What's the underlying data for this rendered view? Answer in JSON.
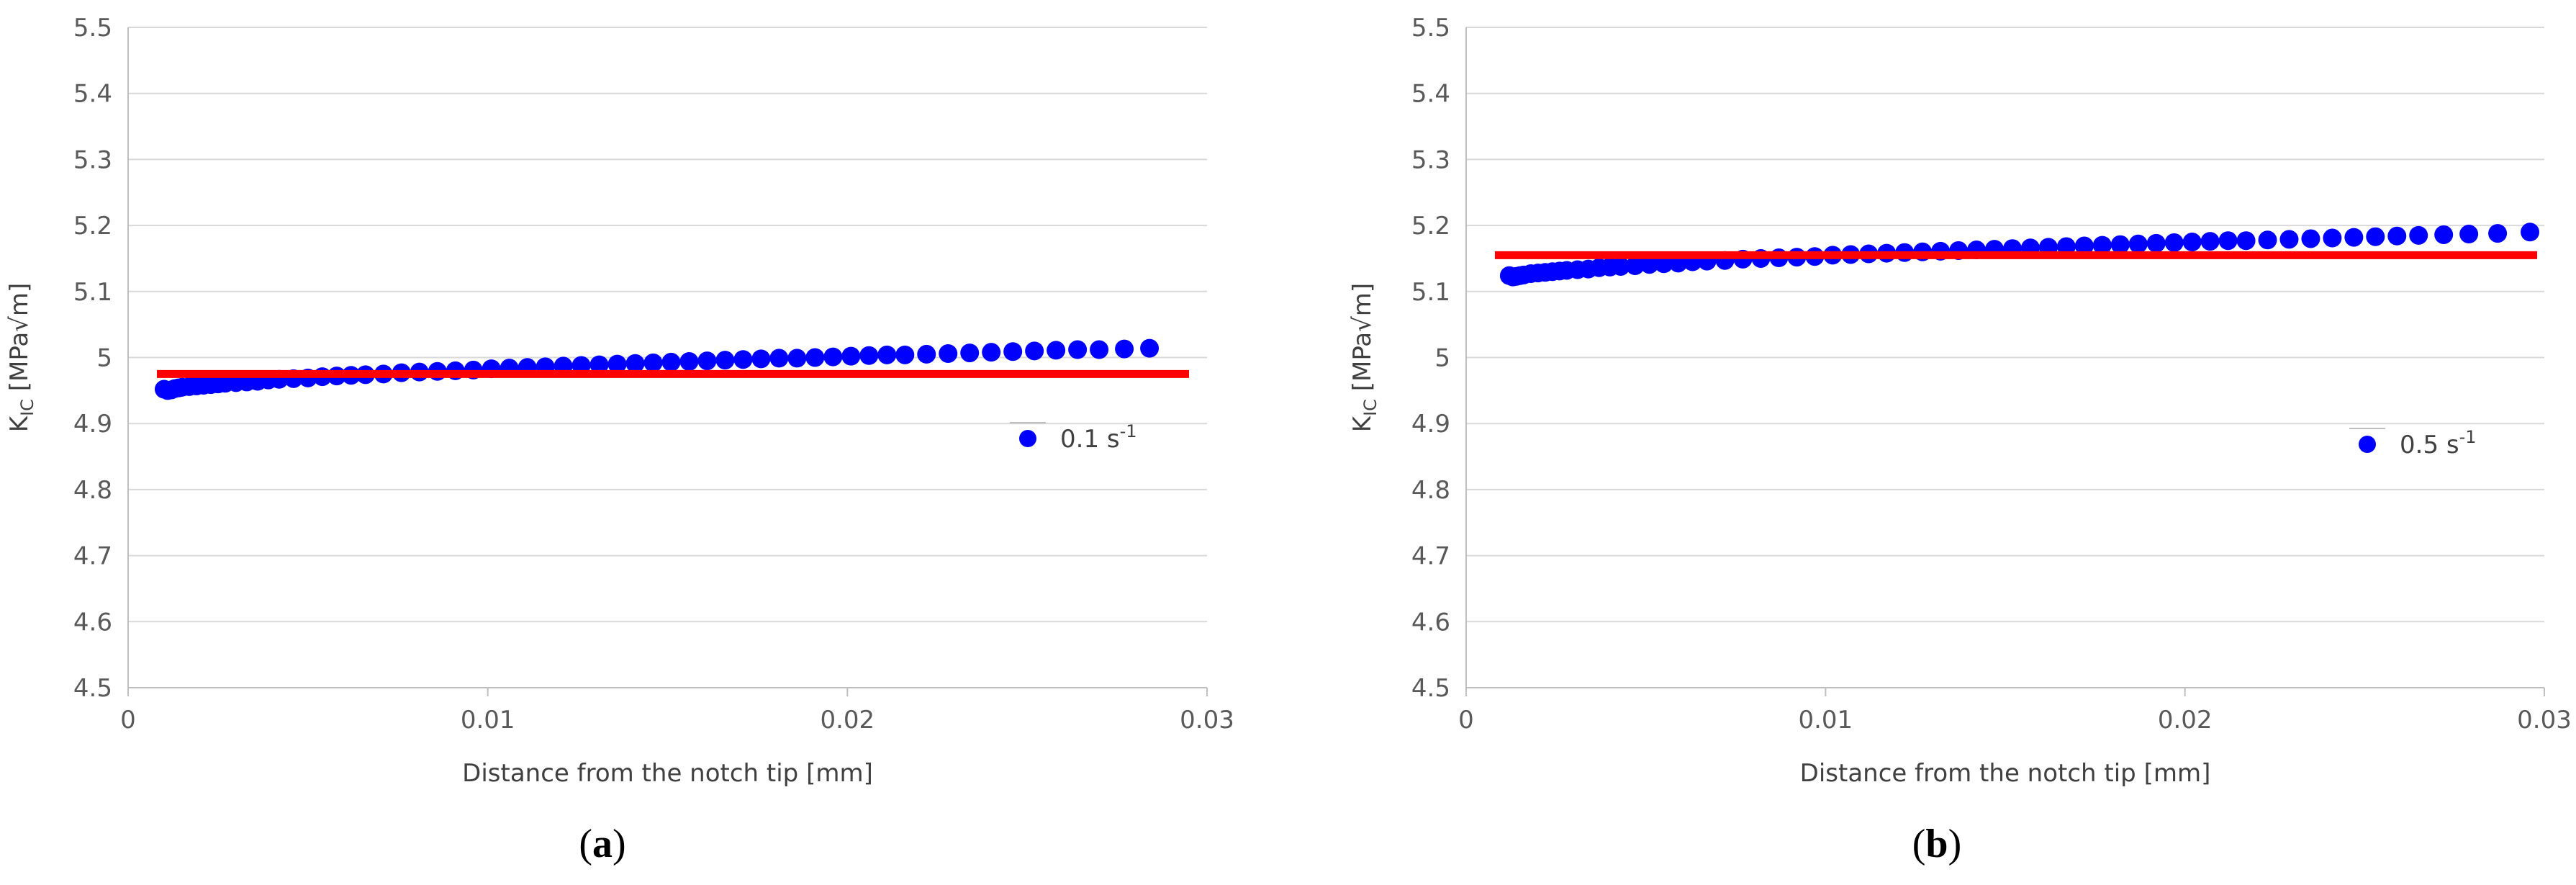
{
  "chart_data": [
    {
      "type": "scatter",
      "panel_label": "(a)",
      "xlabel": "Distance from the notch tip [mm]",
      "ylabel": "KIC [MPa√m]",
      "xlim": [
        0,
        0.03
      ],
      "ylim": [
        4.5,
        5.5
      ],
      "xticks": [
        "0",
        "0.01",
        "0.02",
        "0.03"
      ],
      "yticks": [
        "4.5",
        "4.6",
        "4.7",
        "4.8",
        "4.9",
        "5",
        "5.1",
        "5.2",
        "5.3",
        "5.4",
        "5.5"
      ],
      "grid": "horizontal",
      "legend_position": "right",
      "colors": {
        "points": "#0000ff",
        "line": "#ff0000"
      },
      "series": [
        {
          "name": "0.1 s-1",
          "marker": "circle",
          "points": [
            [
              0.001,
              4.952
            ],
            [
              0.0011,
              4.95
            ],
            [
              0.0012,
              4.951
            ],
            [
              0.0013,
              4.953
            ],
            [
              0.0014,
              4.954
            ],
            [
              0.0015,
              4.955
            ],
            [
              0.0017,
              4.956
            ],
            [
              0.0019,
              4.957
            ],
            [
              0.0021,
              4.958
            ],
            [
              0.0023,
              4.959
            ],
            [
              0.0025,
              4.96
            ],
            [
              0.0027,
              4.961
            ],
            [
              0.003,
              4.962
            ],
            [
              0.0033,
              4.963
            ],
            [
              0.0036,
              4.964
            ],
            [
              0.0039,
              4.966
            ],
            [
              0.0042,
              4.967
            ],
            [
              0.0046,
              4.968
            ],
            [
              0.005,
              4.969
            ],
            [
              0.0054,
              4.971
            ],
            [
              0.0058,
              4.972
            ],
            [
              0.0062,
              4.973
            ],
            [
              0.0066,
              4.974
            ],
            [
              0.0071,
              4.975
            ],
            [
              0.0076,
              4.977
            ],
            [
              0.0081,
              4.978
            ],
            [
              0.0086,
              4.979
            ],
            [
              0.0091,
              4.98
            ],
            [
              0.0096,
              4.981
            ],
            [
              0.0101,
              4.983
            ],
            [
              0.0106,
              4.984
            ],
            [
              0.0111,
              4.985
            ],
            [
              0.0116,
              4.986
            ],
            [
              0.0121,
              4.987
            ],
            [
              0.0126,
              4.988
            ],
            [
              0.0131,
              4.989
            ],
            [
              0.0136,
              4.99
            ],
            [
              0.0141,
              4.991
            ],
            [
              0.0146,
              4.992
            ],
            [
              0.0151,
              4.993
            ],
            [
              0.0156,
              4.994
            ],
            [
              0.0161,
              4.995
            ],
            [
              0.0166,
              4.996
            ],
            [
              0.0171,
              4.997
            ],
            [
              0.0176,
              4.998
            ],
            [
              0.0181,
              4.999
            ],
            [
              0.0186,
              4.999
            ],
            [
              0.0191,
              5.0
            ],
            [
              0.0196,
              5.001
            ],
            [
              0.0201,
              5.002
            ],
            [
              0.0206,
              5.003
            ],
            [
              0.0211,
              5.004
            ],
            [
              0.0216,
              5.004
            ],
            [
              0.0222,
              5.005
            ],
            [
              0.0228,
              5.006
            ],
            [
              0.0234,
              5.007
            ],
            [
              0.024,
              5.008
            ],
            [
              0.0246,
              5.009
            ],
            [
              0.0252,
              5.01
            ],
            [
              0.0258,
              5.011
            ],
            [
              0.0264,
              5.012
            ],
            [
              0.027,
              5.012
            ],
            [
              0.0277,
              5.013
            ],
            [
              0.0284,
              5.014
            ]
          ]
        }
      ],
      "reference_line": {
        "y": 4.975,
        "x_start": 0.0008,
        "x_end": 0.0295
      }
    },
    {
      "type": "scatter",
      "panel_label": "(b)",
      "xlabel": "Distance from the notch tip [mm]",
      "ylabel": "KIC [MPa√m]",
      "xlim": [
        0,
        0.03
      ],
      "ylim": [
        4.5,
        5.5
      ],
      "xticks": [
        "0",
        "0.01",
        "0.02",
        "0.03"
      ],
      "yticks": [
        "4.5",
        "4.6",
        "4.7",
        "4.8",
        "4.9",
        "5",
        "5.1",
        "5.2",
        "5.3",
        "5.4",
        "5.5"
      ],
      "grid": "horizontal",
      "legend_position": "right",
      "colors": {
        "points": "#0000ff",
        "line": "#ff0000"
      },
      "series": [
        {
          "name": "0.5 s-1",
          "marker": "circle",
          "points": [
            [
              0.0012,
              5.124
            ],
            [
              0.0013,
              5.122
            ],
            [
              0.0014,
              5.123
            ],
            [
              0.0015,
              5.124
            ],
            [
              0.0016,
              5.125
            ],
            [
              0.0018,
              5.127
            ],
            [
              0.002,
              5.128
            ],
            [
              0.0022,
              5.129
            ],
            [
              0.0024,
              5.13
            ],
            [
              0.0026,
              5.131
            ],
            [
              0.0028,
              5.132
            ],
            [
              0.0031,
              5.133
            ],
            [
              0.0034,
              5.134
            ],
            [
              0.0037,
              5.136
            ],
            [
              0.004,
              5.137
            ],
            [
              0.0043,
              5.138
            ],
            [
              0.0047,
              5.139
            ],
            [
              0.0051,
              5.141
            ],
            [
              0.0055,
              5.142
            ],
            [
              0.0059,
              5.143
            ],
            [
              0.0063,
              5.145
            ],
            [
              0.0067,
              5.146
            ],
            [
              0.0072,
              5.147
            ],
            [
              0.0077,
              5.149
            ],
            [
              0.0082,
              5.15
            ],
            [
              0.0087,
              5.151
            ],
            [
              0.0092,
              5.152
            ],
            [
              0.0097,
              5.153
            ],
            [
              0.0102,
              5.155
            ],
            [
              0.0107,
              5.156
            ],
            [
              0.0112,
              5.157
            ],
            [
              0.0117,
              5.158
            ],
            [
              0.0122,
              5.159
            ],
            [
              0.0127,
              5.16
            ],
            [
              0.0132,
              5.161
            ],
            [
              0.0137,
              5.162
            ],
            [
              0.0142,
              5.163
            ],
            [
              0.0147,
              5.164
            ],
            [
              0.0152,
              5.165
            ],
            [
              0.0157,
              5.166
            ],
            [
              0.0162,
              5.167
            ],
            [
              0.0167,
              5.168
            ],
            [
              0.0172,
              5.169
            ],
            [
              0.0177,
              5.17
            ],
            [
              0.0182,
              5.171
            ],
            [
              0.0187,
              5.172
            ],
            [
              0.0192,
              5.173
            ],
            [
              0.0197,
              5.174
            ],
            [
              0.0202,
              5.175
            ],
            [
              0.0207,
              5.176
            ],
            [
              0.0212,
              5.177
            ],
            [
              0.0217,
              5.177
            ],
            [
              0.0223,
              5.178
            ],
            [
              0.0229,
              5.179
            ],
            [
              0.0235,
              5.18
            ],
            [
              0.0241,
              5.181
            ],
            [
              0.0247,
              5.182
            ],
            [
              0.0253,
              5.183
            ],
            [
              0.0259,
              5.184
            ],
            [
              0.0265,
              5.185
            ],
            [
              0.0272,
              5.186
            ],
            [
              0.0279,
              5.187
            ],
            [
              0.0287,
              5.188
            ],
            [
              0.0296,
              5.19
            ]
          ]
        }
      ],
      "reference_line": {
        "y": 5.155,
        "x_start": 0.0008,
        "x_end": 0.0298
      }
    }
  ]
}
